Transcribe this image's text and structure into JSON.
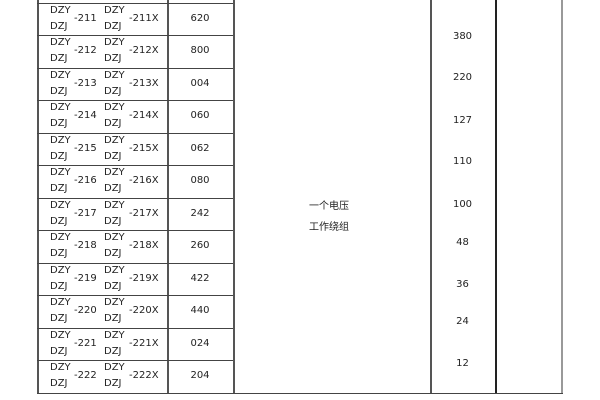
{
  "rows": [
    {
      "a1": "DZY",
      "a2": "DZJ",
      "a": "-211",
      "b1": "DZY",
      "b2": "DZJ",
      "b": "-211X",
      "c": "620"
    },
    {
      "a1": "DZY",
      "a2": "DZJ",
      "a": "-212",
      "b1": "DZY",
      "b2": "DZJ",
      "b": "-212X",
      "c": "800"
    },
    {
      "a1": "DZY",
      "a2": "DZJ",
      "a": "-213",
      "b1": "DZY",
      "b2": "DZJ",
      "b": "-213X",
      "c": "004"
    },
    {
      "a1": "DZY",
      "a2": "DZJ",
      "a": "-214",
      "b1": "DZY",
      "b2": "DZJ",
      "b": "-214X",
      "c": "060"
    },
    {
      "a1": "DZY",
      "a2": "DZJ",
      "a": "-215",
      "b1": "DZY",
      "b2": "DZJ",
      "b": "-215X",
      "c": "062"
    },
    {
      "a1": "DZY",
      "a2": "DZJ",
      "a": "-216",
      "b1": "DZY",
      "b2": "DZJ",
      "b": "-216X",
      "c": "080"
    },
    {
      "a1": "DZY",
      "a2": "DZJ",
      "a": "-217",
      "b1": "DZY",
      "b2": "DZJ",
      "b": "-217X",
      "c": "242"
    },
    {
      "a1": "DZY",
      "a2": "DZJ",
      "a": "-218",
      "b1": "DZY",
      "b2": "DZJ",
      "b": "-218X",
      "c": "260"
    },
    {
      "a1": "DZY",
      "a2": "DZJ",
      "a": "-219",
      "b1": "DZY",
      "b2": "DZJ",
      "b": "-219X",
      "c": "422"
    },
    {
      "a1": "DZY",
      "a2": "DZJ",
      "a": "-220",
      "b1": "DZY",
      "b2": "DZJ",
      "b": "-220X",
      "c": "440"
    },
    {
      "a1": "DZY",
      "a2": "DZJ",
      "a": "-221",
      "b1": "DZY",
      "b2": "DZJ",
      "b": "-221X",
      "c": "024"
    },
    {
      "a1": "DZY",
      "a2": "DZJ",
      "a": "-222",
      "b1": "DZY",
      "b2": "DZJ",
      "b": "-222X",
      "c": "204"
    }
  ],
  "merged": {
    "line1": "一个电压",
    "line2": "工作绕组"
  },
  "voltages": [
    "380",
    "220",
    "127",
    "110",
    "100",
    "48",
    "36",
    "24",
    "12"
  ]
}
